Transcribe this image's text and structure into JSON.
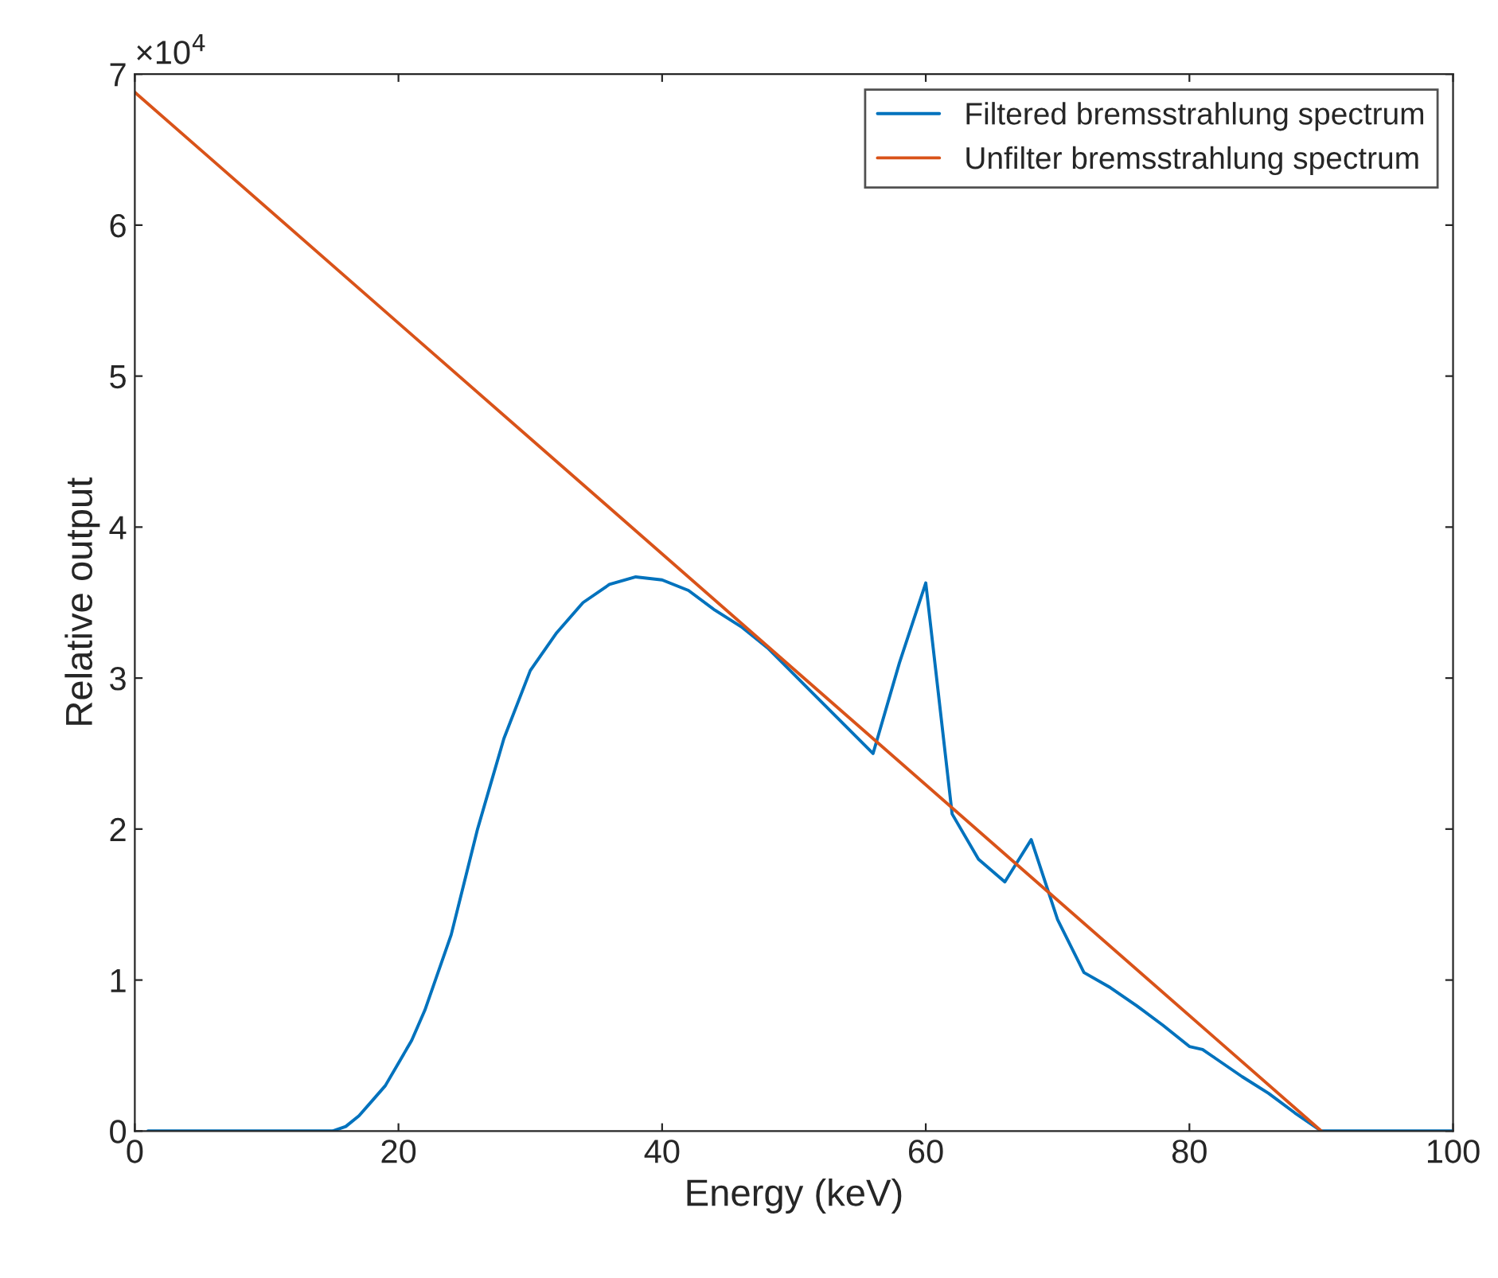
{
  "chart_data": {
    "type": "line",
    "xlabel": "Energy (keV)",
    "ylabel": "Relative output",
    "annotations": [
      "×10$^{4}$"
    ],
    "series": [
      {
        "name": "Filtered bremsstrahlung spectrum",
        "color": "#0072bd",
        "x": [
          1,
          15,
          16,
          17,
          18,
          19,
          20,
          21,
          22,
          23,
          24,
          25,
          26,
          27,
          28,
          30,
          32,
          34,
          36,
          38,
          40,
          42,
          44,
          46,
          48,
          56,
          58,
          60,
          62,
          64,
          66,
          68,
          70,
          72,
          74,
          76,
          78,
          80,
          81,
          82,
          84,
          86,
          88,
          90,
          100
        ],
        "values": [
          0,
          0,
          0.03,
          0.1,
          0.2,
          0.3,
          0.45,
          0.6,
          0.8,
          1.05,
          1.3,
          1.65,
          2.0,
          2.3,
          2.6,
          3.05,
          3.3,
          3.5,
          3.62,
          3.67,
          3.65,
          3.58,
          3.45,
          3.34,
          3.2,
          2.5,
          3.1,
          3.63,
          2.1,
          1.8,
          1.65,
          1.93,
          1.4,
          1.05,
          0.95,
          0.83,
          0.7,
          0.56,
          0.54,
          0.48,
          0.36,
          0.25,
          0.12,
          0,
          0
        ]
      },
      {
        "name": "Unfilter bremsstrahlung spectrum",
        "color": "#d95319",
        "x": [
          0,
          90
        ],
        "values": [
          6.88,
          0
        ]
      }
    ],
    "xlim": [
      0,
      100
    ],
    "xticks": [
      0,
      20,
      40,
      60,
      80,
      100
    ],
    "ylim": [
      0,
      7
    ],
    "yticks": [
      0,
      1,
      2,
      3,
      4,
      5,
      6,
      7
    ],
    "legend": "top right",
    "grid": false,
    "line_style": "solid",
    "marker": "none"
  }
}
